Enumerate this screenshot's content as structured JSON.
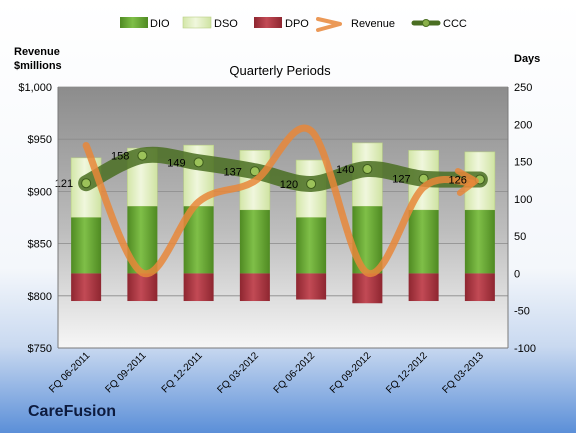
{
  "company": "CareFusion",
  "colors": {
    "dio": "#6aa33a",
    "dso": "#dcebb8",
    "dpo": "#a8353f",
    "revenue": "#e8873a",
    "ccc": "#4a6e22",
    "background_top": "#ffffff",
    "background_bottom": "#5b8fd8"
  },
  "chart_data": {
    "type": "bar",
    "title": "Quarterly Periods",
    "y_left_label": "Revenue\n$millions",
    "y_right_label": "Days",
    "y_left_range": [
      750,
      1000
    ],
    "y_right_range": [
      -100,
      250
    ],
    "y_left_ticks": [
      "$750",
      "$800",
      "$850",
      "$900",
      "$950",
      "$1,000"
    ],
    "y_right_ticks": [
      "-100",
      "-50",
      "0",
      "50",
      "100",
      "150",
      "200",
      "250"
    ],
    "categories": [
      "FQ 06-2011",
      "FQ 09-2011",
      "FQ 12-2011",
      "FQ 03-2012",
      "FQ 06-2012",
      "FQ 09-2012",
      "FQ 12-2012",
      "FQ 03-2013"
    ],
    "legend": [
      "DIO",
      "DSO",
      "DPO",
      "Revenue",
      "CCC"
    ],
    "series": [
      {
        "name": "DIO",
        "axis": "days",
        "values": [
          75,
          90,
          90,
          85,
          75,
          90,
          85,
          85
        ]
      },
      {
        "name": "DSO",
        "axis": "days",
        "values": [
          80,
          78,
          82,
          80,
          77,
          85,
          80,
          78
        ]
      },
      {
        "name": "DPO",
        "axis": "days",
        "values": [
          -37,
          -37,
          -37,
          -37,
          -35,
          -40,
          -37,
          -37
        ]
      },
      {
        "name": "Revenue",
        "axis": "revenue",
        "values": [
          944,
          822,
          890,
          910,
          958,
          822,
          904,
          910
        ]
      },
      {
        "name": "CCC",
        "axis": "days",
        "values": [
          121,
          158,
          149,
          137,
          120,
          140,
          127,
          126
        ]
      }
    ],
    "ccc_labels": [
      "121",
      "158",
      "149",
      "137",
      "120",
      "140",
      "127",
      "126"
    ],
    "grid": true,
    "legend_position": "top"
  }
}
